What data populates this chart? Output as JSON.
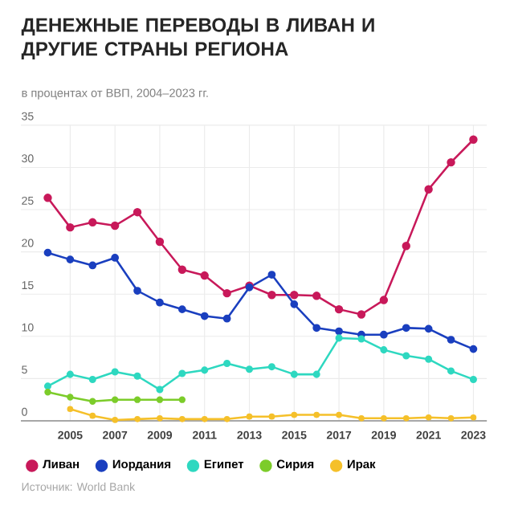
{
  "chart_data": {
    "type": "line",
    "title": "ДЕНЕЖНЫЕ ПЕРЕВОДЫ В ЛИВАН И ДРУГИЕ СТРАНЫ РЕГИОНА",
    "subtitle": "в процентах от ВВП, 2004–2023 гг.",
    "x": [
      2004,
      2005,
      2006,
      2007,
      2008,
      2009,
      2010,
      2011,
      2012,
      2013,
      2014,
      2015,
      2016,
      2017,
      2018,
      2019,
      2020,
      2021,
      2022,
      2023
    ],
    "series": [
      {
        "name": "Ливан",
        "color": "#c8195a",
        "values": [
          26.4,
          22.9,
          23.5,
          23.1,
          24.7,
          21.2,
          17.9,
          17.2,
          15.1,
          16.0,
          14.9,
          14.9,
          14.8,
          13.2,
          12.6,
          14.3,
          20.7,
          27.4,
          30.6,
          33.3
        ]
      },
      {
        "name": "Иордания",
        "color": "#1a3fbf",
        "values": [
          19.9,
          19.1,
          18.4,
          19.3,
          15.4,
          14.0,
          13.2,
          12.4,
          12.1,
          15.8,
          17.3,
          13.8,
          11.0,
          10.6,
          10.2,
          10.2,
          11.0,
          10.9,
          9.6,
          8.5
        ]
      },
      {
        "name": "Египет",
        "color": "#2ed8c0",
        "values": [
          4.1,
          5.5,
          4.9,
          5.8,
          5.3,
          3.7,
          5.6,
          6.0,
          6.8,
          6.1,
          6.4,
          5.5,
          5.5,
          9.8,
          9.7,
          8.4,
          7.7,
          7.3,
          5.9,
          4.9
        ]
      },
      {
        "name": "Сирия",
        "color": "#7ccc2a",
        "values": [
          3.4,
          2.8,
          2.3,
          2.5,
          2.5,
          2.5,
          2.5,
          null,
          null,
          null,
          null,
          null,
          null,
          null,
          null,
          null,
          null,
          null,
          null,
          null
        ]
      },
      {
        "name": "Ирак",
        "color": "#f5c02a",
        "values": [
          null,
          1.4,
          0.6,
          0.1,
          0.2,
          0.3,
          0.2,
          0.2,
          0.2,
          0.5,
          0.5,
          0.7,
          0.7,
          0.7,
          0.3,
          0.3,
          0.3,
          0.4,
          0.3,
          0.4
        ]
      }
    ],
    "xlim": [
      2002.8,
      2023.6
    ],
    "ylim": [
      0,
      35
    ],
    "xticks": [
      2005,
      2007,
      2009,
      2011,
      2013,
      2015,
      2017,
      2019,
      2021,
      2023
    ],
    "yticks": [
      0,
      5,
      10,
      15,
      20,
      25,
      30,
      35
    ],
    "grid": true,
    "legend": "bottom",
    "marker": "circle",
    "line_style": "solid",
    "annotations": [
      "Источник: World Bank"
    ]
  }
}
